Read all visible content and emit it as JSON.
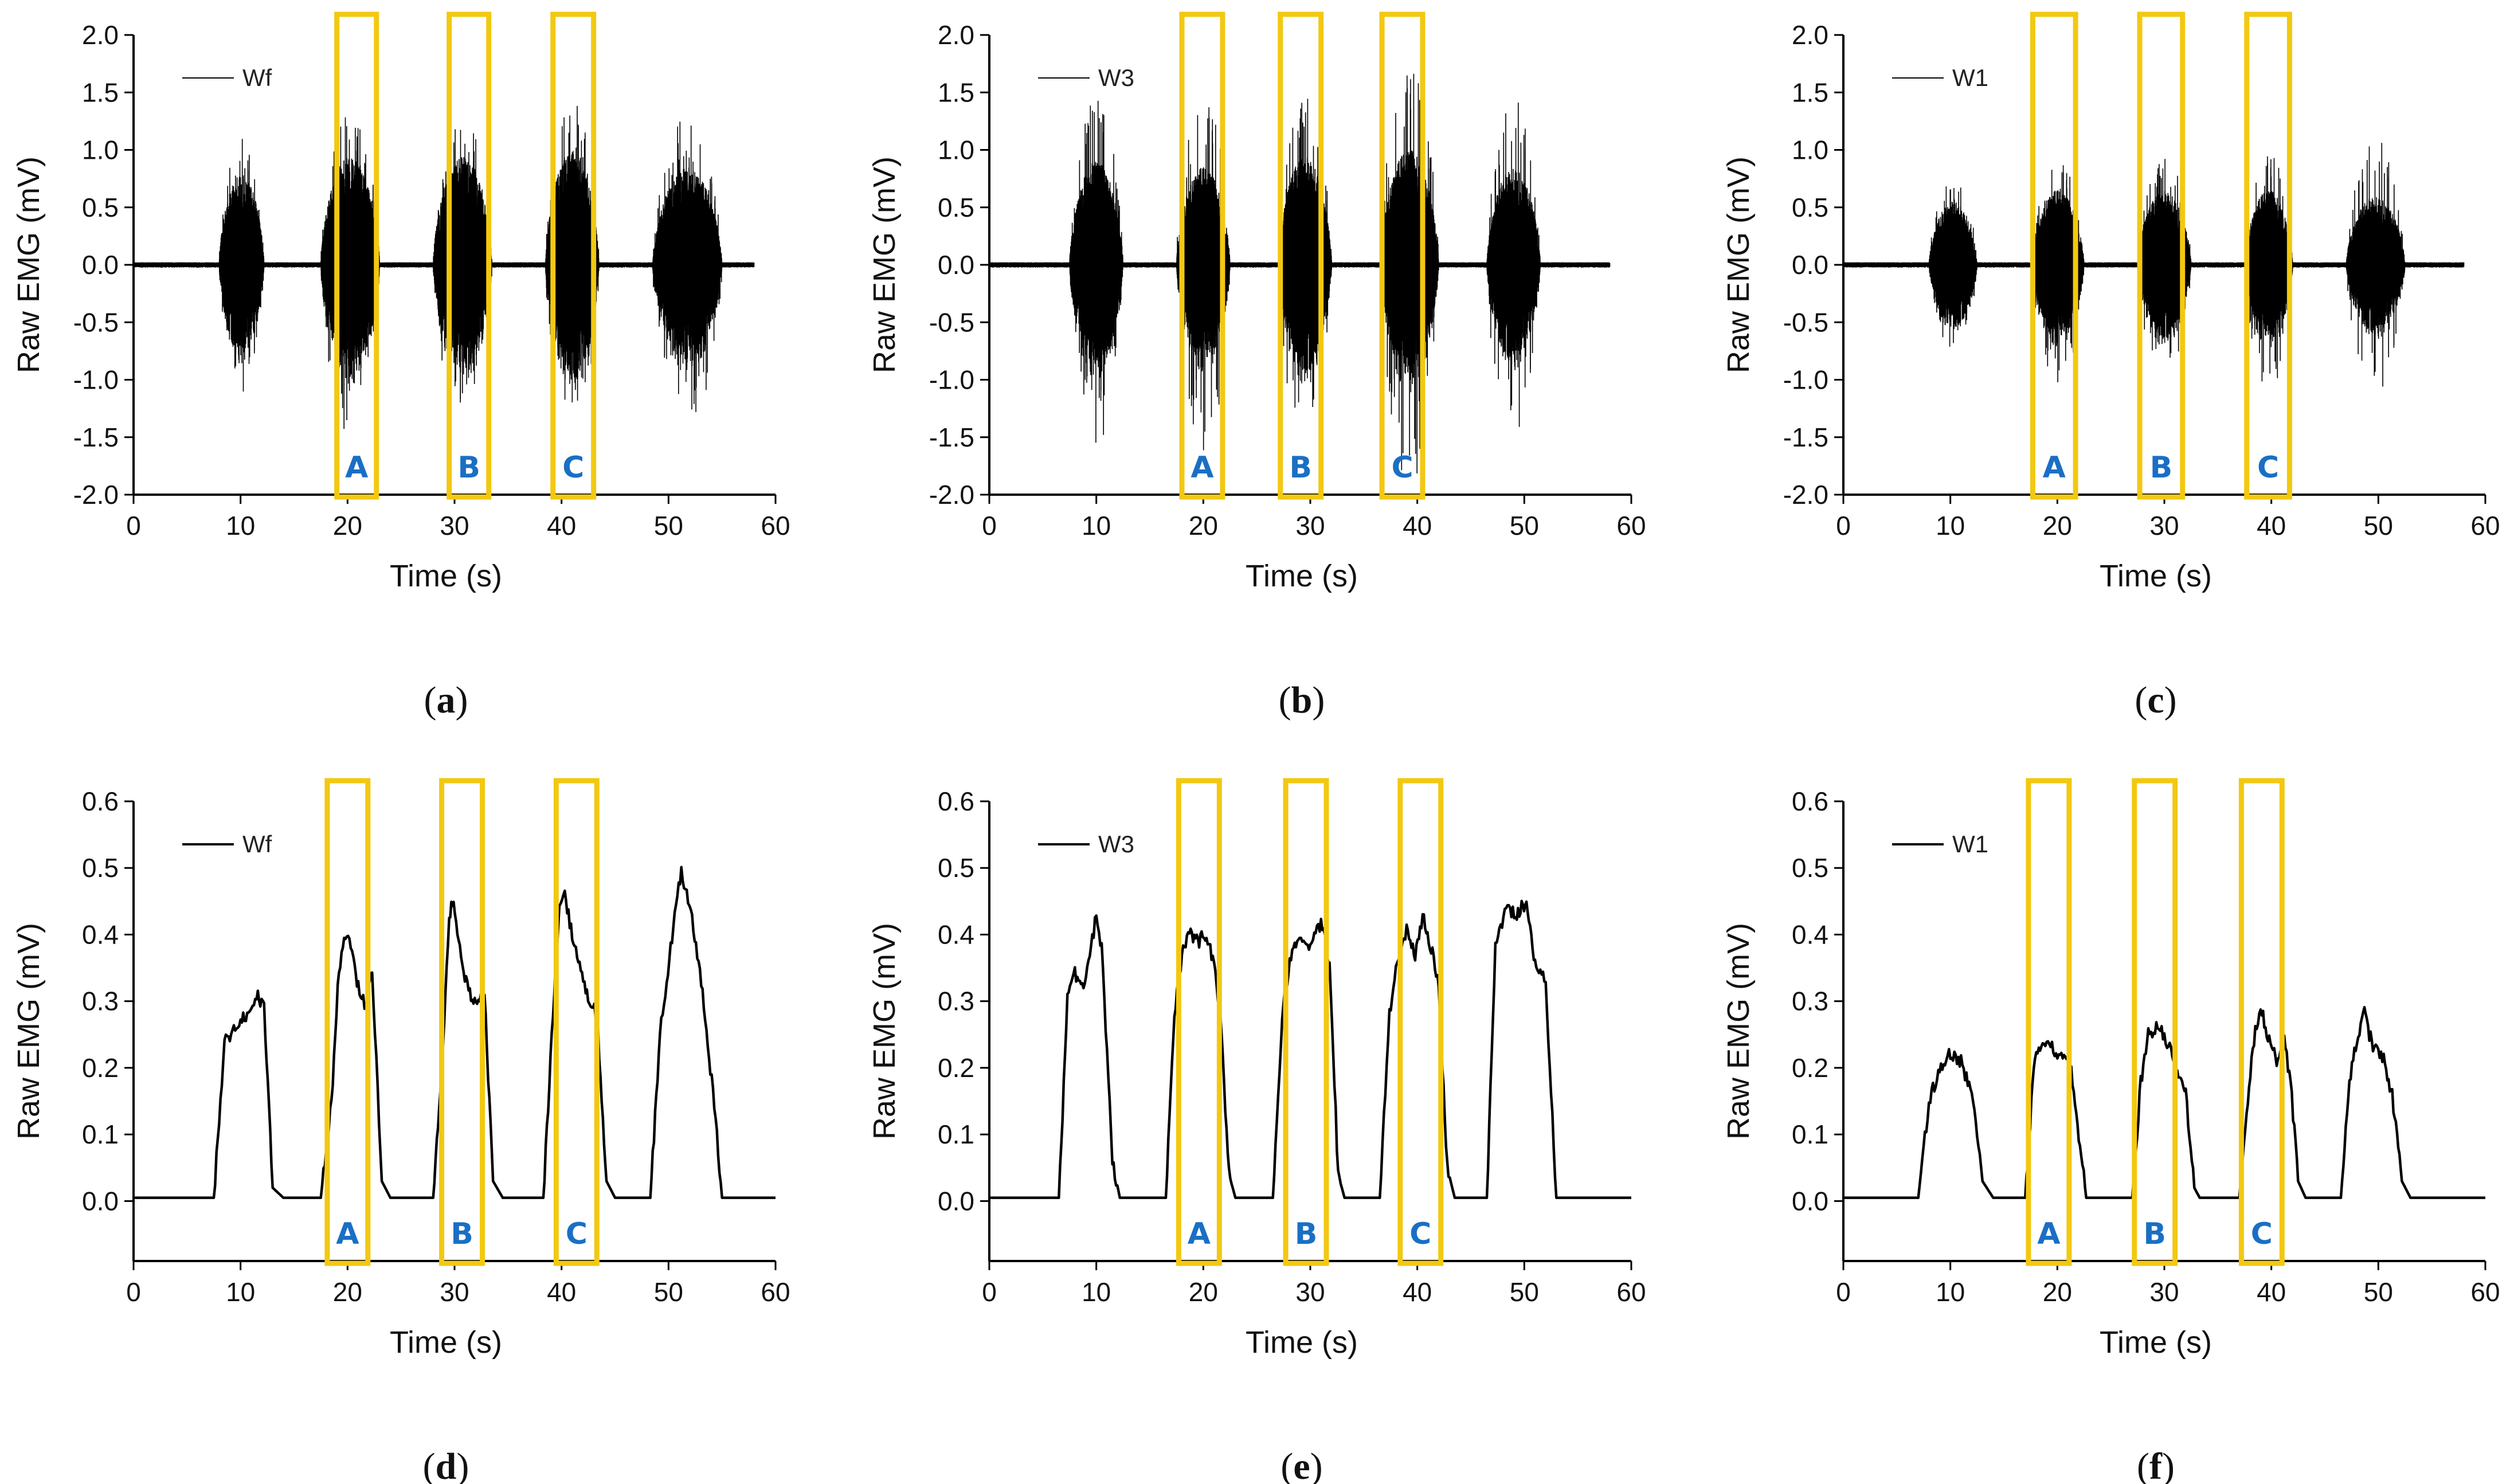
{
  "colors": {
    "trace": "#000000",
    "highlight": "#f2c811",
    "region_label": "#1a6fc4",
    "axis": "#000000"
  },
  "chart_data": [
    {
      "id": "a",
      "caption": "a",
      "type": "line",
      "signal": "raw",
      "series": [
        {
          "name": "Wf"
        }
      ],
      "xlabel": "Time (s)",
      "ylabel": "Raw EMG (mV)",
      "xlim": [
        0,
        60
      ],
      "ylim": [
        -2.0,
        2.0
      ],
      "xticks": [
        "0",
        "10",
        "20",
        "30",
        "40",
        "50",
        "60"
      ],
      "yticks": [
        "-2.0",
        "-1.5",
        "-1.0",
        "-0.5",
        "0.0",
        "0.5",
        "1.0",
        "1.5",
        "2.0"
      ],
      "bursts": [
        {
          "start": 8.0,
          "end": 12.2,
          "amplitude": 0.8,
          "peak": 1.1
        },
        {
          "start": 17.5,
          "end": 23.0,
          "amplitude": 0.95,
          "peak": 1.35
        },
        {
          "start": 28.0,
          "end": 33.5,
          "amplitude": 0.95,
          "peak": 1.3
        },
        {
          "start": 38.5,
          "end": 43.5,
          "amplitude": 1.0,
          "peak": 1.45
        },
        {
          "start": 48.5,
          "end": 55.0,
          "amplitude": 0.85,
          "peak": 1.3
        }
      ],
      "regions": [
        {
          "label": "A",
          "start": 19.0,
          "end": 22.7
        },
        {
          "label": "B",
          "start": 29.5,
          "end": 33.2
        },
        {
          "label": "C",
          "start": 39.2,
          "end": 43.0
        }
      ]
    },
    {
      "id": "b",
      "caption": "b",
      "type": "line",
      "signal": "raw",
      "series": [
        {
          "name": "W3"
        }
      ],
      "xlabel": "Time (s)",
      "ylabel": "Raw EMG (mV)",
      "xlim": [
        0,
        60
      ],
      "ylim": [
        -2.0,
        2.0
      ],
      "xticks": [
        "0",
        "10",
        "20",
        "30",
        "40",
        "50",
        "60"
      ],
      "yticks": [
        "-2.0",
        "-1.5",
        "-1.0",
        "-0.5",
        "0.0",
        "0.5",
        "1.0",
        "1.5",
        "2.0"
      ],
      "bursts": [
        {
          "start": 7.5,
          "end": 12.5,
          "amplitude": 0.9,
          "peak": 1.45
        },
        {
          "start": 17.5,
          "end": 22.5,
          "amplitude": 0.85,
          "peak": 1.5
        },
        {
          "start": 27.0,
          "end": 32.0,
          "amplitude": 0.95,
          "peak": 1.5
        },
        {
          "start": 36.5,
          "end": 42.0,
          "amplitude": 1.0,
          "peak": 1.75
        },
        {
          "start": 46.5,
          "end": 51.5,
          "amplitude": 0.85,
          "peak": 1.45
        }
      ],
      "regions": [
        {
          "label": "A",
          "start": 18.0,
          "end": 21.8
        },
        {
          "label": "B",
          "start": 27.2,
          "end": 31.0
        },
        {
          "label": "C",
          "start": 36.7,
          "end": 40.5
        }
      ]
    },
    {
      "id": "c",
      "caption": "c",
      "type": "line",
      "signal": "raw",
      "series": [
        {
          "name": "W1"
        }
      ],
      "xlabel": "Time (s)",
      "ylabel": "Raw EMG (mV)",
      "xlim": [
        0,
        60
      ],
      "ylim": [
        -2.0,
        2.0
      ],
      "xticks": [
        "0",
        "10",
        "20",
        "30",
        "40",
        "50",
        "60"
      ],
      "yticks": [
        "-2.0",
        "-1.5",
        "-1.0",
        "-0.5",
        "0.0",
        "0.5",
        "1.0",
        "1.5",
        "2.0"
      ],
      "bursts": [
        {
          "start": 8.0,
          "end": 12.5,
          "amplitude": 0.55,
          "peak": 0.75
        },
        {
          "start": 17.5,
          "end": 22.5,
          "amplitude": 0.65,
          "peak": 0.95
        },
        {
          "start": 27.5,
          "end": 32.5,
          "amplitude": 0.65,
          "peak": 0.95
        },
        {
          "start": 37.5,
          "end": 42.0,
          "amplitude": 0.65,
          "peak": 1.0
        },
        {
          "start": 47.0,
          "end": 52.5,
          "amplitude": 0.6,
          "peak": 1.1
        }
      ],
      "regions": [
        {
          "label": "A",
          "start": 17.7,
          "end": 21.7
        },
        {
          "label": "B",
          "start": 27.7,
          "end": 31.7
        },
        {
          "label": "C",
          "start": 37.7,
          "end": 41.7
        }
      ]
    },
    {
      "id": "d",
      "caption": "d",
      "type": "line",
      "signal": "envelope",
      "series": [
        {
          "name": "Wf"
        }
      ],
      "xlabel": "Time (s)",
      "ylabel": "Raw EMG (mV)",
      "xlim": [
        0,
        60
      ],
      "ylim": [
        -0.09,
        0.6
      ],
      "xticks": [
        "0",
        "10",
        "20",
        "30",
        "40",
        "50",
        "60"
      ],
      "yticks": [
        "0.0",
        "0.1",
        "0.2",
        "0.3",
        "0.4",
        "0.5",
        "0.6"
      ],
      "points": [
        [
          0,
          0.005
        ],
        [
          7.5,
          0.005
        ],
        [
          8.5,
          0.24
        ],
        [
          9.5,
          0.26
        ],
        [
          10.5,
          0.28
        ],
        [
          11.5,
          0.31
        ],
        [
          12.2,
          0.29
        ],
        [
          13.0,
          0.02
        ],
        [
          14,
          0.005
        ],
        [
          17.5,
          0.005
        ],
        [
          18.5,
          0.15
        ],
        [
          19.2,
          0.35
        ],
        [
          19.8,
          0.4
        ],
        [
          20.3,
          0.38
        ],
        [
          21.0,
          0.32
        ],
        [
          21.7,
          0.29
        ],
        [
          22.3,
          0.35
        ],
        [
          23.2,
          0.03
        ],
        [
          24,
          0.005
        ],
        [
          28,
          0.005
        ],
        [
          28.8,
          0.2
        ],
        [
          29.5,
          0.42
        ],
        [
          29.8,
          0.45
        ],
        [
          30.5,
          0.38
        ],
        [
          31.2,
          0.32
        ],
        [
          32.0,
          0.29
        ],
        [
          32.8,
          0.31
        ],
        [
          33.6,
          0.03
        ],
        [
          34.5,
          0.005
        ],
        [
          38.3,
          0.005
        ],
        [
          39.2,
          0.28
        ],
        [
          39.8,
          0.45
        ],
        [
          40.3,
          0.46
        ],
        [
          41.0,
          0.4
        ],
        [
          41.8,
          0.35
        ],
        [
          42.6,
          0.3
        ],
        [
          43.3,
          0.28
        ],
        [
          44.2,
          0.03
        ],
        [
          45,
          0.005
        ],
        [
          48.3,
          0.005
        ],
        [
          49.2,
          0.25
        ],
        [
          50.2,
          0.38
        ],
        [
          51.2,
          0.5
        ],
        [
          52.2,
          0.42
        ],
        [
          53.3,
          0.3
        ],
        [
          54.4,
          0.12
        ],
        [
          55.0,
          0.005
        ],
        [
          60,
          0.005
        ]
      ],
      "regions": [
        {
          "label": "A",
          "start": 18.1,
          "end": 21.9
        },
        {
          "label": "B",
          "start": 28.8,
          "end": 32.6
        },
        {
          "label": "C",
          "start": 39.5,
          "end": 43.3
        }
      ]
    },
    {
      "id": "e",
      "caption": "e",
      "type": "line",
      "signal": "envelope",
      "series": [
        {
          "name": "W3"
        }
      ],
      "xlabel": "Time (s)",
      "ylabel": "Raw EMG (mV)",
      "xlim": [
        0,
        60
      ],
      "ylim": [
        -0.09,
        0.6
      ],
      "xticks": [
        "0",
        "10",
        "20",
        "30",
        "40",
        "50",
        "60"
      ],
      "yticks": [
        "0.0",
        "0.1",
        "0.2",
        "0.3",
        "0.4",
        "0.5",
        "0.6"
      ],
      "points": [
        [
          0,
          0.005
        ],
        [
          6.5,
          0.005
        ],
        [
          7.3,
          0.3
        ],
        [
          8.0,
          0.34
        ],
        [
          8.8,
          0.32
        ],
        [
          9.5,
          0.38
        ],
        [
          10.0,
          0.43
        ],
        [
          10.5,
          0.38
        ],
        [
          11.5,
          0.06
        ],
        [
          12.2,
          0.005
        ],
        [
          16.5,
          0.005
        ],
        [
          17.3,
          0.28
        ],
        [
          18.0,
          0.37
        ],
        [
          18.7,
          0.4
        ],
        [
          19.5,
          0.39
        ],
        [
          20.3,
          0.4
        ],
        [
          21.0,
          0.35
        ],
        [
          21.6,
          0.28
        ],
        [
          22.4,
          0.04
        ],
        [
          23,
          0.005
        ],
        [
          26.5,
          0.005
        ],
        [
          27.5,
          0.3
        ],
        [
          28.2,
          0.37
        ],
        [
          29.0,
          0.39
        ],
        [
          30.0,
          0.38
        ],
        [
          31.0,
          0.42
        ],
        [
          31.8,
          0.36
        ],
        [
          32.6,
          0.04
        ],
        [
          33.2,
          0.005
        ],
        [
          36.5,
          0.005
        ],
        [
          37.4,
          0.28
        ],
        [
          38.0,
          0.35
        ],
        [
          39.0,
          0.41
        ],
        [
          39.8,
          0.37
        ],
        [
          40.5,
          0.43
        ],
        [
          41.3,
          0.38
        ],
        [
          42.0,
          0.32
        ],
        [
          42.8,
          0.05
        ],
        [
          43.5,
          0.005
        ],
        [
          46.5,
          0.005
        ],
        [
          47.3,
          0.38
        ],
        [
          48.3,
          0.44
        ],
        [
          49.3,
          0.43
        ],
        [
          50.2,
          0.45
        ],
        [
          51.0,
          0.36
        ],
        [
          52.0,
          0.33
        ],
        [
          53.0,
          0.005
        ],
        [
          60,
          0.005
        ]
      ],
      "regions": [
        {
          "label": "A",
          "start": 17.7,
          "end": 21.5
        },
        {
          "label": "B",
          "start": 27.7,
          "end": 31.5
        },
        {
          "label": "C",
          "start": 38.4,
          "end": 42.2
        }
      ]
    },
    {
      "id": "f",
      "caption": "f",
      "type": "line",
      "signal": "envelope",
      "series": [
        {
          "name": "W1"
        }
      ],
      "xlabel": "Time (s)",
      "ylabel": "Raw EMG (mV)",
      "xlim": [
        0,
        60
      ],
      "ylim": [
        -0.09,
        0.6
      ],
      "xticks": [
        "0",
        "10",
        "20",
        "30",
        "40",
        "50",
        "60"
      ],
      "yticks": [
        "0.0",
        "0.1",
        "0.2",
        "0.3",
        "0.4",
        "0.5",
        "0.6"
      ],
      "points": [
        [
          0,
          0.005
        ],
        [
          7,
          0.005
        ],
        [
          8.0,
          0.15
        ],
        [
          9.0,
          0.2
        ],
        [
          10.0,
          0.22
        ],
        [
          11.0,
          0.21
        ],
        [
          12.0,
          0.16
        ],
        [
          13.0,
          0.03
        ],
        [
          14,
          0.005
        ],
        [
          17.0,
          0.005
        ],
        [
          17.8,
          0.2
        ],
        [
          18.5,
          0.24
        ],
        [
          19.5,
          0.23
        ],
        [
          20.5,
          0.22
        ],
        [
          21.3,
          0.2
        ],
        [
          22.0,
          0.1
        ],
        [
          22.7,
          0.005
        ],
        [
          27,
          0.005
        ],
        [
          27.8,
          0.18
        ],
        [
          28.5,
          0.25
        ],
        [
          29.5,
          0.26
        ],
        [
          30.5,
          0.23
        ],
        [
          31.2,
          0.2
        ],
        [
          32.0,
          0.16
        ],
        [
          32.8,
          0.02
        ],
        [
          33.3,
          0.005
        ],
        [
          37.0,
          0.005
        ],
        [
          37.8,
          0.15
        ],
        [
          38.5,
          0.26
        ],
        [
          39.0,
          0.29
        ],
        [
          39.8,
          0.24
        ],
        [
          40.5,
          0.21
        ],
        [
          41.2,
          0.24
        ],
        [
          41.8,
          0.18
        ],
        [
          42.5,
          0.03
        ],
        [
          43.2,
          0.005
        ],
        [
          46.5,
          0.005
        ],
        [
          47.3,
          0.18
        ],
        [
          48.0,
          0.24
        ],
        [
          48.7,
          0.28
        ],
        [
          49.5,
          0.23
        ],
        [
          50.5,
          0.21
        ],
        [
          51.3,
          0.16
        ],
        [
          52.2,
          0.03
        ],
        [
          53.0,
          0.005
        ],
        [
          60,
          0.005
        ]
      ],
      "regions": [
        {
          "label": "A",
          "start": 17.3,
          "end": 21.1
        },
        {
          "label": "B",
          "start": 27.2,
          "end": 31.0
        },
        {
          "label": "C",
          "start": 37.2,
          "end": 41.0
        }
      ]
    }
  ]
}
